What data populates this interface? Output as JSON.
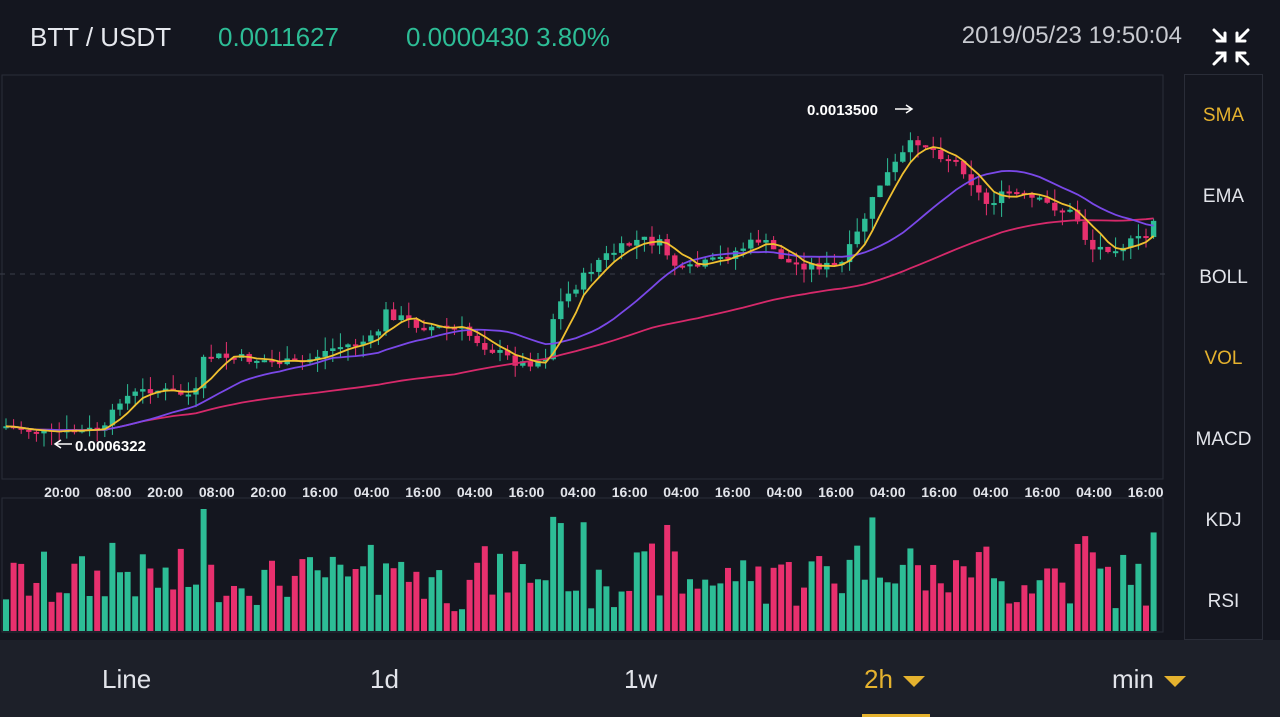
{
  "header": {
    "pair": "BTT / USDT",
    "price": "0.0011627",
    "change": "0.0000430 3.80%",
    "datetime": "2019/05/23 19:50:04"
  },
  "chart": {
    "high_label": "0.0013500",
    "low_label": "0.0006322",
    "x_ticks": [
      "20:00",
      "08:00",
      "20:00",
      "08:00",
      "20:00",
      "16:00",
      "04:00",
      "16:00",
      "04:00",
      "16:00",
      "04:00",
      "16:00",
      "04:00",
      "16:00",
      "04:00",
      "16:00",
      "04:00",
      "16:00",
      "04:00",
      "16:00",
      "04:00",
      "16:00"
    ],
    "colors": {
      "up": "#2dbd96",
      "down": "#e8306e",
      "ma_fast": "#f0c030",
      "ma_mid": "#7a48e8",
      "ma_slow": "#d6296a"
    }
  },
  "indicators": [
    {
      "label": "SMA",
      "active": true
    },
    {
      "label": "EMA",
      "active": false
    },
    {
      "label": "BOLL",
      "active": false
    },
    {
      "label": "VOL",
      "active": true
    },
    {
      "label": "MACD",
      "active": false
    },
    {
      "label": "KDJ",
      "active": false
    },
    {
      "label": "RSI",
      "active": false
    }
  ],
  "timeframes": [
    {
      "label": "Line",
      "active": false,
      "dropdown": false
    },
    {
      "label": "1d",
      "active": false,
      "dropdown": false
    },
    {
      "label": "1w",
      "active": false,
      "dropdown": false
    },
    {
      "label": "2h",
      "active": true,
      "dropdown": true
    },
    {
      "label": "min",
      "active": false,
      "dropdown": true
    }
  ]
}
